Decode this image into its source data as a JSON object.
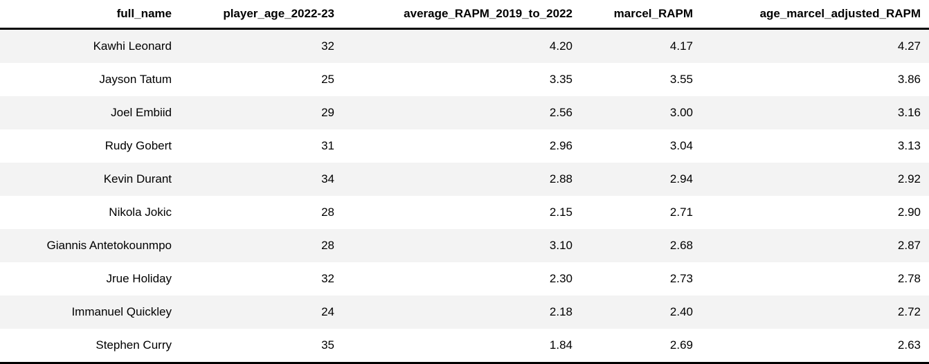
{
  "table": {
    "columns": [
      "full_name",
      "player_age_2022-23",
      "average_RAPM_2019_to_2022",
      "marcel_RAPM",
      "age_marcel_adjusted_RAPM"
    ],
    "rows": [
      [
        "Kawhi Leonard",
        "32",
        "4.20",
        "4.17",
        "4.27"
      ],
      [
        "Jayson Tatum",
        "25",
        "3.35",
        "3.55",
        "3.86"
      ],
      [
        "Joel Embiid",
        "29",
        "2.56",
        "3.00",
        "3.16"
      ],
      [
        "Rudy Gobert",
        "31",
        "2.96",
        "3.04",
        "3.13"
      ],
      [
        "Kevin Durant",
        "34",
        "2.88",
        "2.94",
        "2.92"
      ],
      [
        "Nikola Jokic",
        "28",
        "2.15",
        "2.71",
        "2.90"
      ],
      [
        "Giannis Antetokounmpo",
        "28",
        "3.10",
        "2.68",
        "2.87"
      ],
      [
        "Jrue Holiday",
        "32",
        "2.30",
        "2.73",
        "2.78"
      ],
      [
        "Immanuel Quickley",
        "24",
        "2.18",
        "2.40",
        "2.72"
      ],
      [
        "Stephen Curry",
        "35",
        "1.84",
        "2.69",
        "2.63"
      ]
    ]
  },
  "chart_data": {
    "type": "table",
    "title": "",
    "columns": [
      "full_name",
      "player_age_2022-23",
      "average_RAPM_2019_to_2022",
      "marcel_RAPM",
      "age_marcel_adjusted_RAPM"
    ],
    "rows": [
      {
        "full_name": "Kawhi Leonard",
        "player_age_2022-23": 32,
        "average_RAPM_2019_to_2022": 4.2,
        "marcel_RAPM": 4.17,
        "age_marcel_adjusted_RAPM": 4.27
      },
      {
        "full_name": "Jayson Tatum",
        "player_age_2022-23": 25,
        "average_RAPM_2019_to_2022": 3.35,
        "marcel_RAPM": 3.55,
        "age_marcel_adjusted_RAPM": 3.86
      },
      {
        "full_name": "Joel Embiid",
        "player_age_2022-23": 29,
        "average_RAPM_2019_to_2022": 2.56,
        "marcel_RAPM": 3.0,
        "age_marcel_adjusted_RAPM": 3.16
      },
      {
        "full_name": "Rudy Gobert",
        "player_age_2022-23": 31,
        "average_RAPM_2019_to_2022": 2.96,
        "marcel_RAPM": 3.04,
        "age_marcel_adjusted_RAPM": 3.13
      },
      {
        "full_name": "Kevin Durant",
        "player_age_2022-23": 34,
        "average_RAPM_2019_to_2022": 2.88,
        "marcel_RAPM": 2.94,
        "age_marcel_adjusted_RAPM": 2.92
      },
      {
        "full_name": "Nikola Jokic",
        "player_age_2022-23": 28,
        "average_RAPM_2019_to_2022": 2.15,
        "marcel_RAPM": 2.71,
        "age_marcel_adjusted_RAPM": 2.9
      },
      {
        "full_name": "Giannis Antetokounmpo",
        "player_age_2022-23": 28,
        "average_RAPM_2019_to_2022": 3.1,
        "marcel_RAPM": 2.68,
        "age_marcel_adjusted_RAPM": 2.87
      },
      {
        "full_name": "Jrue Holiday",
        "player_age_2022-23": 32,
        "average_RAPM_2019_to_2022": 2.3,
        "marcel_RAPM": 2.73,
        "age_marcel_adjusted_RAPM": 2.78
      },
      {
        "full_name": "Immanuel Quickley",
        "player_age_2022-23": 24,
        "average_RAPM_2019_to_2022": 2.18,
        "marcel_RAPM": 2.4,
        "age_marcel_adjusted_RAPM": 2.72
      },
      {
        "full_name": "Stephen Curry",
        "player_age_2022-23": 35,
        "average_RAPM_2019_to_2022": 1.84,
        "marcel_RAPM": 2.69,
        "age_marcel_adjusted_RAPM": 2.63
      }
    ],
    "layout_hints": {
      "header_rule": true,
      "bottom_rule": true,
      "striped_rows": true,
      "alignment": "right"
    }
  },
  "colors": {
    "background": "#ffffff",
    "stripe": "#f3f3f3",
    "rule": "#000000",
    "text": "#000000"
  }
}
